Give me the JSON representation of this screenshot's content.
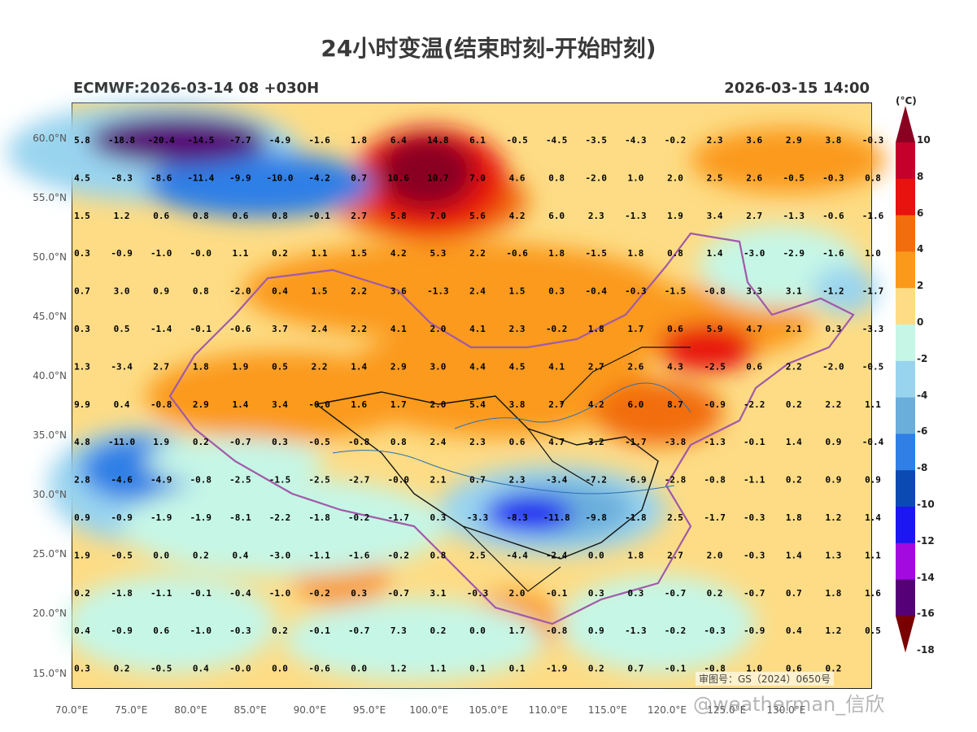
{
  "title": "24小时变温(结束时刻-开始时刻)",
  "subtitle_left": "ECMWF:2026-03-14 08 +030H",
  "subtitle_right": "2026-03-15 14:00",
  "colorbar": {
    "unit": "(°C)",
    "labels": [
      "10",
      "8",
      "6",
      "4",
      "2",
      "0",
      "-2",
      "-4",
      "-6",
      "-8",
      "-10",
      "-12",
      "-14",
      "-16",
      "-18"
    ],
    "colors": [
      "#8a0020",
      "#c4002b",
      "#e8120e",
      "#f26d0e",
      "#fb9a1a",
      "#fddc85",
      "#c6f6e6",
      "#99d4ef",
      "#6aaedc",
      "#2f7fe6",
      "#0b4ab2",
      "#1c16f2",
      "#a30ae0",
      "#560077",
      "#7a0000"
    ]
  },
  "latitudes": [
    "60.0°N",
    "55.0°N",
    "50.0°N",
    "45.0°N",
    "40.0°N",
    "35.0°N",
    "30.0°N",
    "25.0°N",
    "20.0°N",
    "15.0°N"
  ],
  "longitudes": [
    "70.0°E",
    "75.0°E",
    "80.0°E",
    "85.0°E",
    "90.0°E",
    "95.0°E",
    "100.0°E",
    "105.0°E",
    "110.0°E",
    "115.0°E",
    "120.0°E",
    "125.0°E",
    "130.0°E"
  ],
  "grid_values": [
    [
      "5.8",
      "-18.8",
      "-20.4",
      "-14.5",
      "-7.7",
      "-4.9",
      "-1.6",
      "1.8",
      "6.4",
      "14.8",
      "6.1",
      "-0.5",
      "-4.5",
      "-3.5",
      "-4.3",
      "-0.2",
      "2.3",
      "3.6",
      "2.9",
      "3.8",
      "-0.3"
    ],
    [
      "4.5",
      "-8.3",
      "-8.6",
      "-11.4",
      "-9.9",
      "-10.0",
      "-4.2",
      "0.7",
      "10.6",
      "10.7",
      "7.0",
      "4.6",
      "0.8",
      "-2.0",
      "1.0",
      "2.0",
      "2.5",
      "2.6",
      "-0.5",
      "-0.3",
      "0.8"
    ],
    [
      "1.5",
      "1.2",
      "0.6",
      "0.8",
      "0.6",
      "0.8",
      "-0.1",
      "2.7",
      "5.8",
      "7.0",
      "5.6",
      "4.2",
      "6.0",
      "2.3",
      "-1.3",
      "1.9",
      "3.4",
      "2.7",
      "-1.3",
      "-0.6",
      "-1.6"
    ],
    [
      "0.3",
      "-0.9",
      "-1.0",
      "-0.0",
      "1.1",
      "0.2",
      "1.1",
      "1.5",
      "4.2",
      "5.3",
      "2.2",
      "-0.6",
      "1.8",
      "-1.5",
      "1.8",
      "0.8",
      "1.4",
      "-3.0",
      "-2.9",
      "-1.6",
      "1.0"
    ],
    [
      "0.7",
      "3.0",
      "0.9",
      "0.8",
      "-2.0",
      "0.4",
      "1.5",
      "2.2",
      "3.6",
      "-1.3",
      "2.4",
      "1.5",
      "0.3",
      "-0.4",
      "-0.3",
      "-1.5",
      "-0.8",
      "3.3",
      "3.1",
      "-1.2",
      "-1.7"
    ],
    [
      "0.3",
      "0.5",
      "-1.4",
      "-0.1",
      "-0.6",
      "3.7",
      "2.4",
      "2.2",
      "4.1",
      "2.0",
      "4.1",
      "2.3",
      "-0.2",
      "1.8",
      "1.7",
      "0.6",
      "5.9",
      "4.7",
      "2.1",
      "0.3",
      "-3.3"
    ],
    [
      "1.3",
      "-3.4",
      "2.7",
      "1.8",
      "1.9",
      "0.5",
      "2.2",
      "1.4",
      "2.9",
      "3.0",
      "4.4",
      "4.5",
      "4.1",
      "2.7",
      "2.6",
      "4.3",
      "-2.5",
      "0.6",
      "2.2",
      "-2.0",
      "-0.5"
    ],
    [
      "9.9",
      "0.4",
      "-0.8",
      "2.9",
      "1.4",
      "3.4",
      "-0.0",
      "1.6",
      "1.7",
      "2.0",
      "5.4",
      "3.8",
      "2.7",
      "4.2",
      "6.0",
      "8.7",
      "-0.9",
      "-2.2",
      "0.2",
      "2.2",
      "1.1"
    ],
    [
      "4.8",
      "-11.0",
      "1.9",
      "0.2",
      "-0.7",
      "0.3",
      "-0.5",
      "-0.8",
      "0.8",
      "2.4",
      "2.3",
      "0.6",
      "4.7",
      "3.2",
      "-1.7",
      "-3.8",
      "-1.3",
      "-0.1",
      "1.4",
      "0.9",
      "-0.4"
    ],
    [
      "2.8",
      "-4.6",
      "-4.9",
      "-0.8",
      "-2.5",
      "-1.5",
      "-2.5",
      "-2.7",
      "-0.0",
      "2.1",
      "0.7",
      "2.3",
      "-3.4",
      "-7.2",
      "-6.9",
      "-2.8",
      "-0.8",
      "-1.1",
      "0.2",
      "0.9",
      "0.9"
    ],
    [
      "0.9",
      "-0.9",
      "-1.9",
      "-1.9",
      "-8.1",
      "-2.2",
      "-1.8",
      "-0.2",
      "-1.7",
      "0.3",
      "-3.3",
      "-8.3",
      "-11.8",
      "-9.8",
      "-1.8",
      "2.5",
      "-1.7",
      "-0.3",
      "1.8",
      "1.2",
      "1.4"
    ],
    [
      "1.9",
      "-0.5",
      "0.0",
      "0.2",
      "0.4",
      "-3.0",
      "-1.1",
      "-1.6",
      "-0.2",
      "0.8",
      "2.5",
      "-4.4",
      "-2.4",
      "0.0",
      "1.8",
      "2.7",
      "2.0",
      "-0.3",
      "1.4",
      "1.3",
      "1.1"
    ],
    [
      "0.2",
      "-1.8",
      "-1.1",
      "-0.1",
      "-0.4",
      "-1.0",
      "-0.2",
      "0.3",
      "-0.7",
      "3.1",
      "-0.3",
      "2.0",
      "-0.1",
      "0.3",
      "0.3",
      "-0.7",
      "0.2",
      "-0.7",
      "0.7",
      "1.8",
      "1.6"
    ],
    [
      "0.4",
      "-0.9",
      "0.6",
      "-1.0",
      "-0.3",
      "0.2",
      "-0.1",
      "-0.7",
      "7.3",
      "0.2",
      "0.0",
      "1.7",
      "-0.8",
      "0.9",
      "-1.3",
      "-0.2",
      "-0.3",
      "-0.9",
      "0.4",
      "1.2",
      "0.5"
    ],
    [
      "0.3",
      "0.2",
      "-0.5",
      "0.4",
      "-0.0",
      "0.0",
      "-0.6",
      "0.0",
      "1.2",
      "1.1",
      "0.1",
      "0.1",
      "-1.9",
      "0.2",
      "0.7",
      "-0.1",
      "-0.8",
      "1.0",
      "0.6",
      "0.2",
      ""
    ]
  ],
  "watermark_plate": "审图号：GS（2024）0650号",
  "watermark_user": "@weatherman_信欣"
}
